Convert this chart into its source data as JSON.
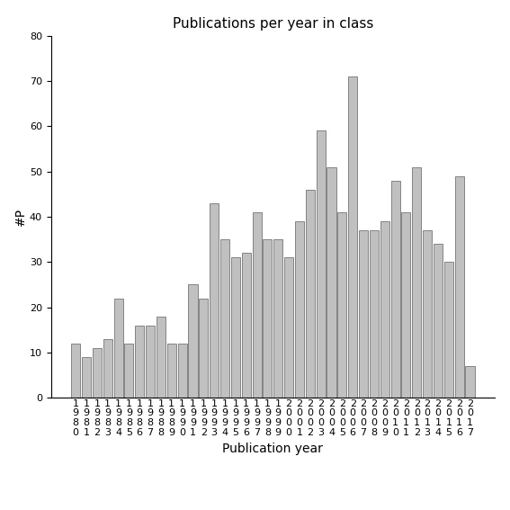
{
  "years": [
    1980,
    1981,
    1982,
    1983,
    1984,
    1985,
    1986,
    1987,
    1988,
    1989,
    1990,
    1991,
    1992,
    1993,
    1994,
    1995,
    1996,
    1997,
    1998,
    1999,
    2000,
    2001,
    2002,
    2003,
    2004,
    2005,
    2006,
    2007,
    2008,
    2009,
    2010,
    2011,
    2012,
    2013,
    2014,
    2015,
    2016,
    2017
  ],
  "values": [
    12,
    9,
    11,
    13,
    22,
    12,
    16,
    16,
    18,
    12,
    12,
    25,
    22,
    43,
    35,
    31,
    32,
    41,
    35,
    35,
    31,
    39,
    46,
    59,
    51,
    41,
    71,
    37,
    37,
    39,
    48,
    41,
    51,
    37,
    34,
    30,
    49,
    7
  ],
  "bar_color": "#c0c0c0",
  "bar_edgecolor": "#606060",
  "title": "Publications per year in class",
  "xlabel": "Publication year",
  "ylabel": "#P",
  "ylim": [
    0,
    80
  ],
  "yticks": [
    0,
    10,
    20,
    30,
    40,
    50,
    60,
    70,
    80
  ],
  "background_color": "#ffffff",
  "title_fontsize": 11,
  "label_fontsize": 10,
  "tick_fontsize": 8
}
